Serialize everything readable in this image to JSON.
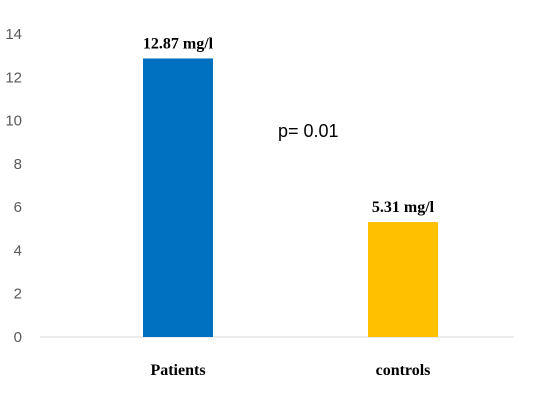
{
  "chart_data": {
    "type": "bar",
    "categories": [
      "Patients",
      "controls"
    ],
    "values": [
      12.87,
      5.31
    ],
    "data_labels": [
      "12.87 mg/l",
      "5.31 mg/l"
    ],
    "colors": [
      "#0070c0",
      "#ffc000"
    ],
    "ylim": [
      0,
      14
    ],
    "yticks": [
      0,
      2,
      4,
      6,
      8,
      10,
      12,
      14
    ],
    "grid": false,
    "annotation": "p= 0.01",
    "title": "",
    "xlabel": "",
    "ylabel": ""
  }
}
